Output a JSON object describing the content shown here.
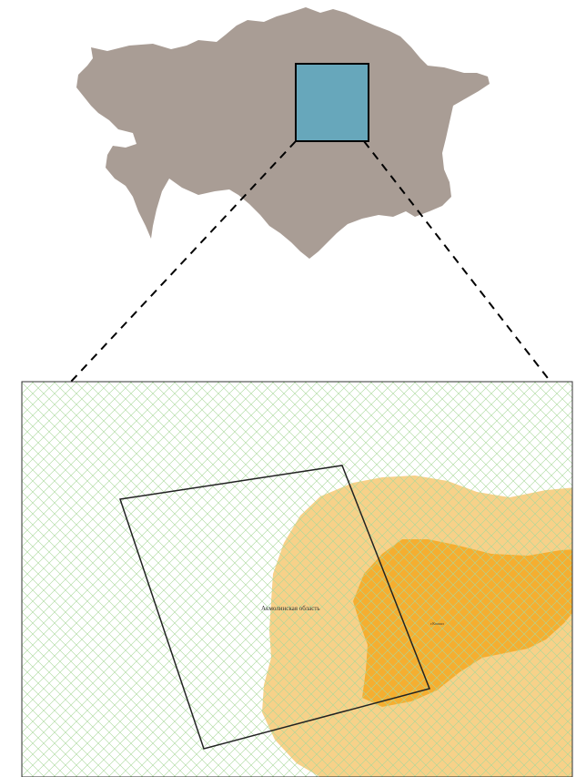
{
  "overview_map": {
    "country_color": "#a99d95",
    "highlight_color": "#67a7bb",
    "highlight_stroke": "#000000"
  },
  "detail_map": {
    "background_color": "#ffffff",
    "hatch_color": "#a8d89a",
    "outer_zone_color": "#f7d189",
    "inner_zone_color": "#f5ae30",
    "labels": {
      "region": "Акмолинская область",
      "city": "г.Ксшшл"
    }
  },
  "connector_style": "dashed"
}
